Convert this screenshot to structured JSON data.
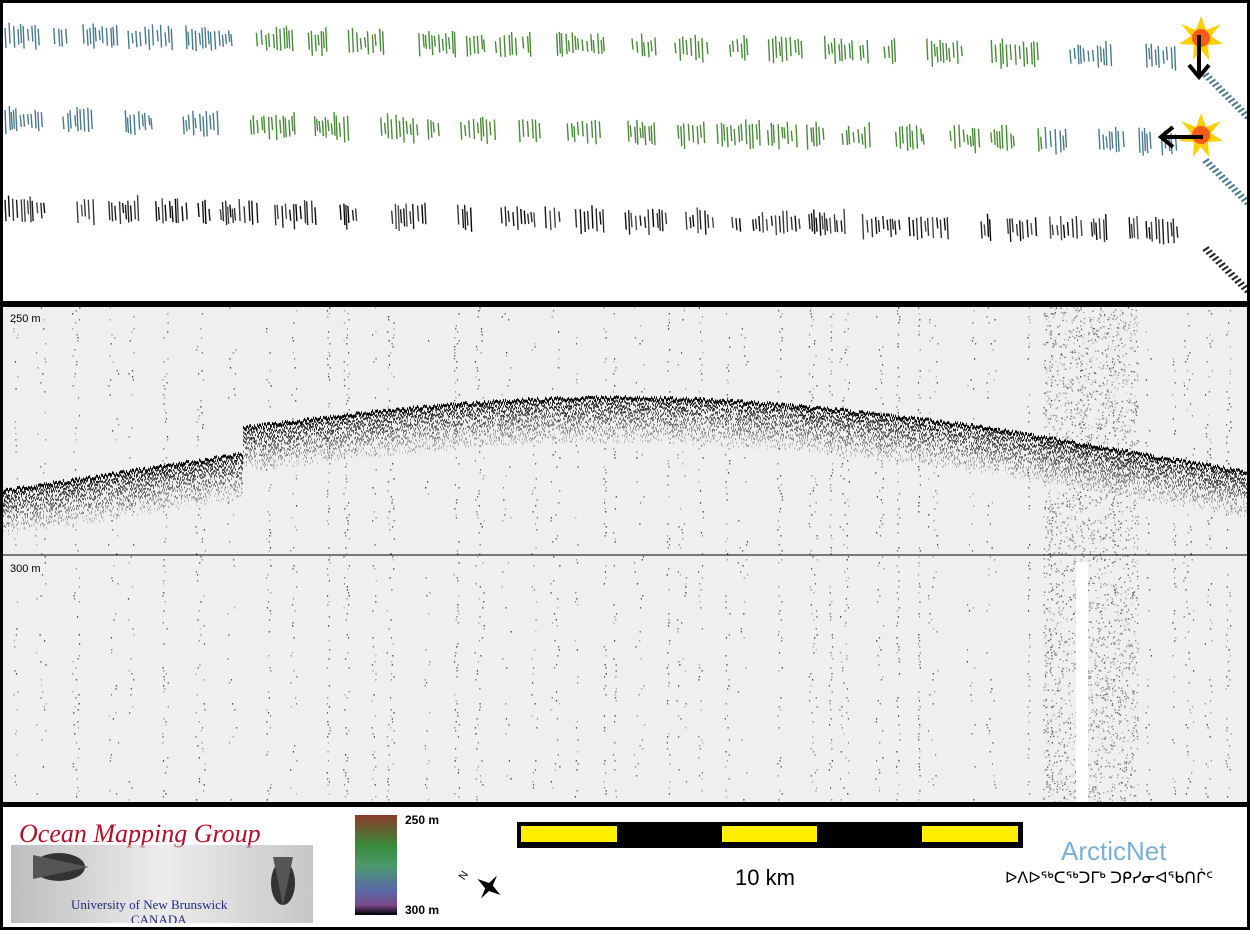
{
  "sonar": {
    "depth_top": "250 m",
    "depth_mid": "300 m"
  },
  "legend": {
    "colorbar_top": "250 m",
    "colorbar_bottom": "300 m",
    "scale_label": "10 km"
  },
  "logos": {
    "omg_title": "Ocean Mapping Group",
    "omg_university": "University of New Brunswick",
    "omg_country": "CANADA",
    "arcticnet": "ArcticNet",
    "arcticnet_syllabics": "ᐅᐱᐅᖅᑕᖅᑐᒥᒃ ᑐᑭᓯᓂᐊᖃᑎᒌᑦ"
  },
  "icons": {
    "sun_marker": "sun-icon",
    "arrow_down": "arrow-down-icon",
    "arrow_left": "arrow-left-icon",
    "north_arrow": "compass-icon"
  },
  "colors": {
    "track_blue": "#4a7a8a",
    "track_green": "#4a8a3a",
    "scale_yellow": "#ffee00",
    "omg_red": "#b0102a",
    "arcticnet_blue": "#7ab0d4"
  }
}
